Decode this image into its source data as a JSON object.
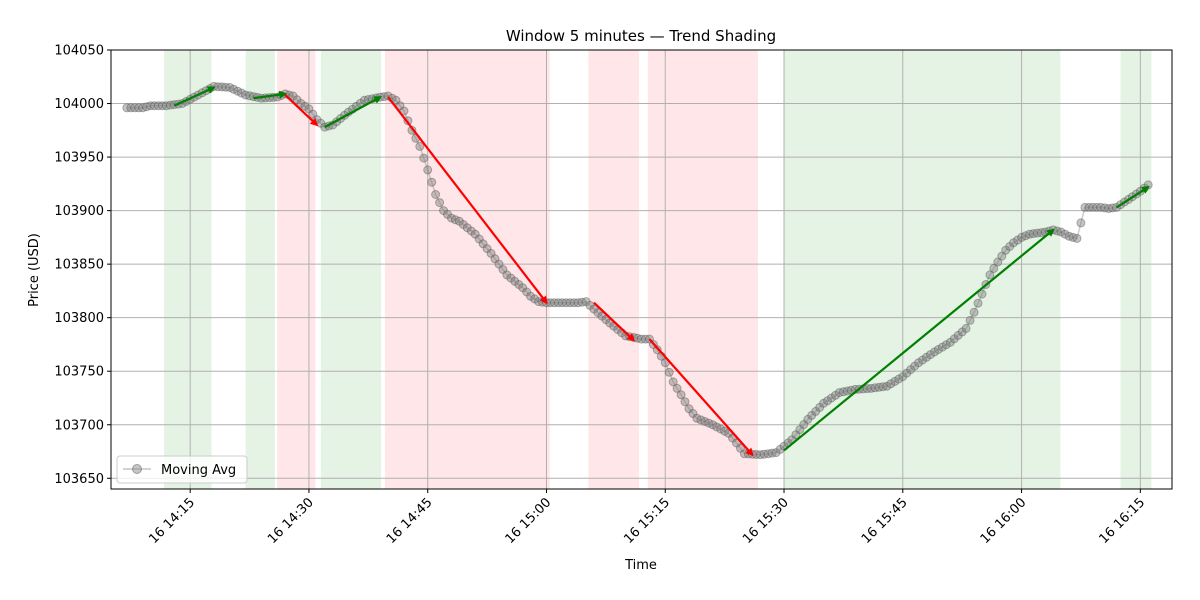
{
  "chart_data": {
    "type": "line",
    "title": "Window 5 minutes — Trend Shading",
    "xlabel": "Time",
    "ylabel": "Price (USD)",
    "xlim": [
      "14:05",
      "16:19"
    ],
    "ylim": [
      103640,
      104050
    ],
    "y_ticks": [
      103650,
      103700,
      103750,
      103800,
      103850,
      103900,
      103950,
      104000,
      104050
    ],
    "x_ticks": [
      {
        "t": "14:15",
        "label": "16 14:15"
      },
      {
        "t": "14:30",
        "label": "16 14:30"
      },
      {
        "t": "14:45",
        "label": "16 14:45"
      },
      {
        "t": "15:00",
        "label": "16 15:00"
      },
      {
        "t": "15:15",
        "label": "16 15:15"
      },
      {
        "t": "15:30",
        "label": "16 15:30"
      },
      {
        "t": "15:45",
        "label": "16 15:45"
      },
      {
        "t": "16:00",
        "label": "16 16:00"
      },
      {
        "t": "16:15",
        "label": "16 16:15"
      }
    ],
    "grid": true,
    "legend": {
      "placement": "lower-left",
      "entries": [
        "Moving Avg"
      ]
    },
    "colors": {
      "up": "#008000",
      "down": "#ff0000",
      "up_shade": "#d4ebd4",
      "down_shade": "#ffd6d9",
      "marker": "#808080"
    },
    "series": [
      {
        "name": "Moving Avg",
        "keypoints": [
          [
            "14:07",
            103996
          ],
          [
            "14:09",
            103996
          ],
          [
            "14:10",
            103998
          ],
          [
            "14:12",
            103998
          ],
          [
            "14:14",
            104000
          ],
          [
            "14:16",
            104008
          ],
          [
            "14:18",
            104016
          ],
          [
            "14:20",
            104015
          ],
          [
            "14:22",
            104008
          ],
          [
            "14:24",
            104005
          ],
          [
            "14:26",
            104006
          ],
          [
            "14:27",
            104009
          ],
          [
            "14:28",
            104007
          ],
          [
            "14:29",
            104000
          ],
          [
            "14:30",
            103995
          ],
          [
            "14:31",
            103985
          ],
          [
            "14:32",
            103978
          ],
          [
            "14:33",
            103980
          ],
          [
            "14:35",
            103992
          ],
          [
            "14:37",
            104003
          ],
          [
            "14:39",
            104006
          ],
          [
            "14:40",
            104007
          ],
          [
            "14:41",
            104003
          ],
          [
            "14:42",
            103993
          ],
          [
            "14:43",
            103975
          ],
          [
            "14:44",
            103960
          ],
          [
            "14:45",
            103938
          ],
          [
            "14:46",
            103915
          ],
          [
            "14:47",
            103900
          ],
          [
            "14:48",
            103893
          ],
          [
            "14:49",
            103890
          ],
          [
            "14:51",
            103878
          ],
          [
            "14:53",
            103860
          ],
          [
            "14:55",
            103840
          ],
          [
            "14:57",
            103828
          ],
          [
            "14:58",
            103820
          ],
          [
            "14:59",
            103815
          ],
          [
            "15:00",
            103814
          ],
          [
            "15:04",
            103814
          ],
          [
            "15:05",
            103815
          ],
          [
            "15:06",
            103808
          ],
          [
            "15:08",
            103795
          ],
          [
            "15:10",
            103783
          ],
          [
            "15:12",
            103780
          ],
          [
            "15:13",
            103780
          ],
          [
            "15:14",
            103770
          ],
          [
            "15:15",
            103758
          ],
          [
            "15:16",
            103740
          ],
          [
            "15:17",
            103728
          ],
          [
            "15:18",
            103715
          ],
          [
            "15:19",
            103706
          ],
          [
            "15:21",
            103700
          ],
          [
            "15:23",
            103692
          ],
          [
            "15:24",
            103683
          ],
          [
            "15:25",
            103673
          ],
          [
            "15:27",
            103672
          ],
          [
            "15:29",
            103674
          ],
          [
            "15:31",
            103686
          ],
          [
            "15:33",
            103705
          ],
          [
            "15:35",
            103720
          ],
          [
            "15:37",
            103730
          ],
          [
            "15:39",
            103733
          ],
          [
            "15:41",
            103734
          ],
          [
            "15:43",
            103736
          ],
          [
            "15:45",
            103745
          ],
          [
            "15:47",
            103758
          ],
          [
            "15:49",
            103768
          ],
          [
            "15:51",
            103777
          ],
          [
            "15:53",
            103790
          ],
          [
            "15:54",
            103805
          ],
          [
            "15:55",
            103822
          ],
          [
            "15:56",
            103840
          ],
          [
            "15:57",
            103852
          ],
          [
            "15:58",
            103863
          ],
          [
            "15:59",
            103870
          ],
          [
            "16:00",
            103875
          ],
          [
            "16:01",
            103878
          ],
          [
            "16:03",
            103880
          ],
          [
            "16:04",
            103882
          ],
          [
            "16:05",
            103880
          ],
          [
            "16:06",
            103876
          ],
          [
            "16:07",
            103874
          ],
          [
            "16:08",
            103903
          ],
          [
            "16:10",
            103903
          ],
          [
            "16:11",
            103902
          ],
          [
            "16:12",
            103903
          ],
          [
            "16:13",
            103908
          ],
          [
            "16:14",
            103913
          ],
          [
            "16:15",
            103918
          ],
          [
            "16:16",
            103924
          ]
        ]
      }
    ],
    "trend_regions": [
      {
        "dir": "up",
        "start": "14:11.7",
        "end": "14:17.7",
        "arrow_from": [
          "14:13",
          103998
        ],
        "arrow_to": [
          "14:18",
          104015
        ]
      },
      {
        "dir": "up",
        "start": "14:22",
        "end": "14:25.7",
        "arrow_from": [
          "14:23",
          104005
        ],
        "arrow_to": [
          "14:27",
          104009
        ]
      },
      {
        "dir": "down",
        "start": "14:26",
        "end": "14:30.8",
        "arrow_from": [
          "14:27",
          104008
        ],
        "arrow_to": [
          "14:31",
          103980
        ]
      },
      {
        "dir": "up",
        "start": "14:31.5",
        "end": "14:39.1",
        "arrow_from": [
          "14:32",
          103978
        ],
        "arrow_to": [
          "14:39",
          104006
        ]
      },
      {
        "dir": "down",
        "start": "14:39.6",
        "end": "15:00.4",
        "arrow_from": [
          "14:40",
          104006
        ],
        "arrow_to": [
          "15:00",
          103814
        ]
      },
      {
        "dir": "down",
        "start": "15:05.3",
        "end": "15:11.7",
        "arrow_from": [
          "15:06",
          103814
        ],
        "arrow_to": [
          "15:11",
          103779
        ]
      },
      {
        "dir": "down",
        "start": "15:12.8",
        "end": "15:26.7",
        "arrow_from": [
          "15:13",
          103780
        ],
        "arrow_to": [
          "15:26",
          103672
        ]
      },
      {
        "dir": "up",
        "start": "15:30",
        "end": "16:04.9",
        "arrow_from": [
          "15:30",
          103676
        ],
        "arrow_to": [
          "16:04",
          103882
        ]
      },
      {
        "dir": "up",
        "start": "16:12.5",
        "end": "16:16.4",
        "arrow_from": [
          "16:12",
          103903
        ],
        "arrow_to": [
          "16:16",
          103922
        ]
      }
    ]
  }
}
